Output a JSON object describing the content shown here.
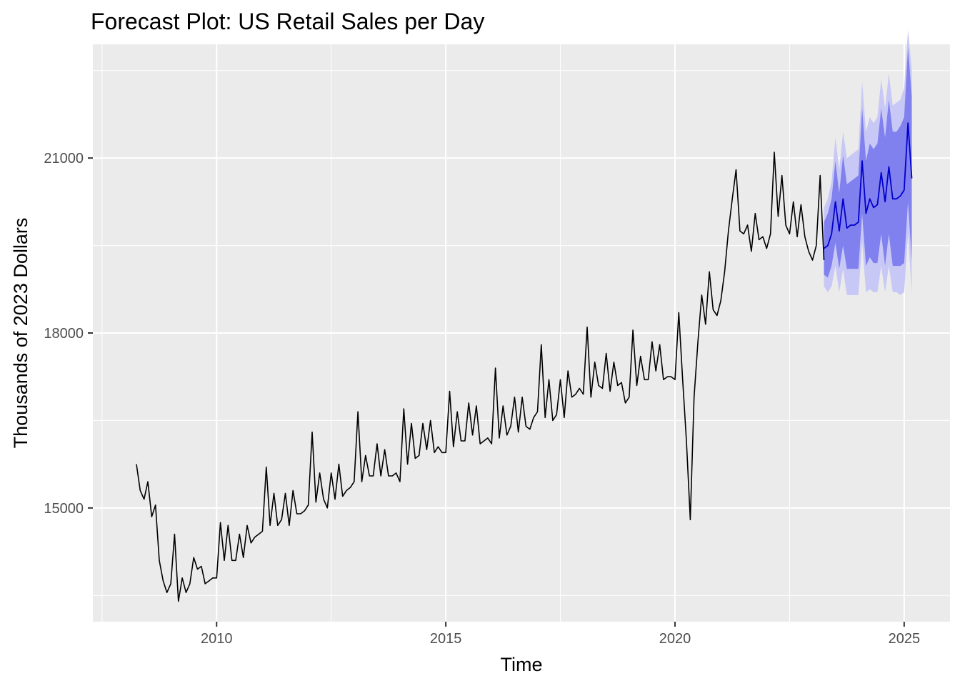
{
  "chart_data": {
    "type": "line",
    "title": "Forecast Plot: US Retail Sales per Day",
    "xlabel": "Time",
    "ylabel": "Thousands of 2023 Dollars",
    "xlim": [
      2007.3,
      2026.0
    ],
    "ylim": [
      13050,
      22950
    ],
    "x_ticks": [
      2010,
      2015,
      2020,
      2025
    ],
    "y_ticks": [
      15000,
      18000,
      21000
    ],
    "grid": true,
    "colors": {
      "panel": "#ebebeb",
      "grid": "#ffffff",
      "history": "#000000",
      "forecast_line": "#0000cc",
      "band_80": "#8080ee",
      "band_95": "#c8c8f6"
    },
    "series": [
      {
        "name": "",
        "start": 2008.25,
        "step": 0.0833333,
        "values": [
          15750,
          15300,
          15150,
          15450,
          14850,
          15050,
          14100,
          13750,
          13550,
          13700,
          14550,
          13400,
          13800,
          13550,
          13700,
          14150,
          13950,
          14000,
          13700,
          13750,
          13800,
          13800,
          14750,
          14100,
          14700,
          14100,
          14100,
          14550,
          14150,
          14700,
          14400,
          14500,
          14550,
          14600,
          15700,
          14700,
          15250,
          14700,
          14800,
          15250,
          14700,
          15300,
          14900,
          14900,
          14950,
          15050,
          16300,
          15100,
          15600,
          15150,
          15000,
          15600,
          15150,
          15750,
          15200,
          15300,
          15350,
          15450,
          16650,
          15450,
          15900,
          15550,
          15550,
          16100,
          15550,
          16000,
          15550,
          15550,
          15600,
          15450,
          16700,
          15750,
          16450,
          15850,
          15900,
          16450,
          16000,
          16500,
          15950,
          16050,
          15950,
          15950,
          17000,
          16050,
          16650,
          16150,
          16150,
          16800,
          16250,
          16750,
          16100,
          16150,
          16200,
          16100,
          17400,
          16200,
          16750,
          16250,
          16400,
          16900,
          16300,
          16900,
          16400,
          16350,
          16550,
          16650,
          17800,
          16550,
          17200,
          16500,
          16600,
          17200,
          16550,
          17350,
          16900,
          16950,
          17050,
          16950,
          18100,
          16900,
          17500,
          17100,
          17050,
          17650,
          17000,
          17500,
          17100,
          17150,
          16800,
          16900,
          18050,
          17100,
          17600,
          17200,
          17200,
          17850,
          17350,
          17800,
          17200,
          17250,
          17250,
          17200,
          18350,
          17200,
          16150,
          14800,
          16900,
          17850,
          18650,
          18150,
          19050,
          18400,
          18300,
          18550,
          19050,
          19750,
          20300,
          20800,
          19750,
          19700,
          19850,
          19400,
          20050,
          19600,
          19650,
          19450,
          19700,
          21100,
          20000,
          20700,
          19850,
          19700,
          20250,
          19650,
          20200,
          19650,
          19400,
          19250,
          19500,
          20700,
          19250
        ]
      },
      {
        "name": "",
        "start": 2023.25,
        "step": 0.0833333,
        "values": [
          19450,
          19500,
          19700,
          20250,
          19750,
          20300,
          19800,
          19850,
          19850,
          19900,
          20950,
          20050,
          20300,
          20150,
          20200,
          20750,
          20250,
          20850,
          20300,
          20300,
          20350,
          20450,
          21600,
          20650
        ],
        "lo80": [
          19000,
          18950,
          19150,
          19550,
          19100,
          19500,
          19100,
          19100,
          19100,
          19100,
          20050,
          19150,
          19300,
          19200,
          19200,
          19700,
          19150,
          19700,
          19150,
          19150,
          19150,
          19200,
          20250,
          19250
        ],
        "hi80": [
          19900,
          20050,
          20300,
          20950,
          20400,
          21050,
          20550,
          20600,
          20650,
          20700,
          21850,
          20950,
          21250,
          21150,
          21250,
          21850,
          21350,
          22000,
          21450,
          21450,
          21550,
          21700,
          22900,
          22050
        ],
        "lo95": [
          18800,
          18700,
          18800,
          19150,
          18700,
          19100,
          18650,
          18650,
          18650,
          18650,
          19550,
          18700,
          18750,
          18700,
          18700,
          19150,
          18700,
          19150,
          18700,
          18700,
          18650,
          18700,
          19700,
          18700
        ],
        "hi95": [
          20150,
          20300,
          20600,
          21350,
          20800,
          21450,
          21000,
          21050,
          21100,
          21150,
          22300,
          21450,
          21700,
          21600,
          21700,
          22350,
          21850,
          22450,
          21900,
          21950,
          22000,
          22200,
          23200,
          22500
        ]
      }
    ]
  }
}
